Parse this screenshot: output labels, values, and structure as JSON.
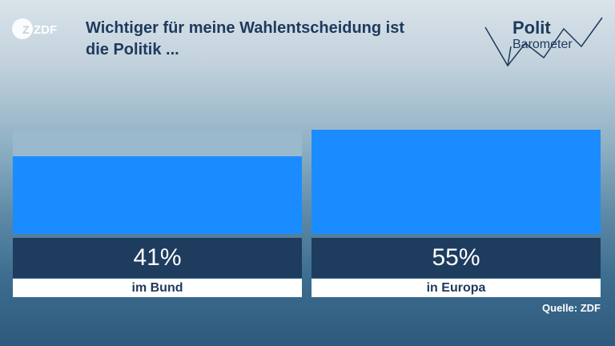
{
  "header": {
    "title_line1": "Wichtiger für meine Wahlentscheidung ist",
    "title_line2": "die Politik ...",
    "zdf_logo_text": "ZDF",
    "polit_logo_line1": "Polit",
    "polit_logo_line2": "Barometer"
  },
  "colors": {
    "bar": "#1a8cff",
    "bar_track": "#9ab9cc",
    "value_box": "#1d3c5e",
    "title": "#1e3a5c"
  },
  "chart_data": {
    "type": "bar",
    "categories": [
      "im Bund",
      "in Europa"
    ],
    "values": [
      41,
      55
    ],
    "value_labels": [
      "41%",
      "55%"
    ],
    "ylim": [
      0,
      55
    ],
    "unit": "%"
  },
  "footer": {
    "source": "Quelle: ZDF"
  }
}
